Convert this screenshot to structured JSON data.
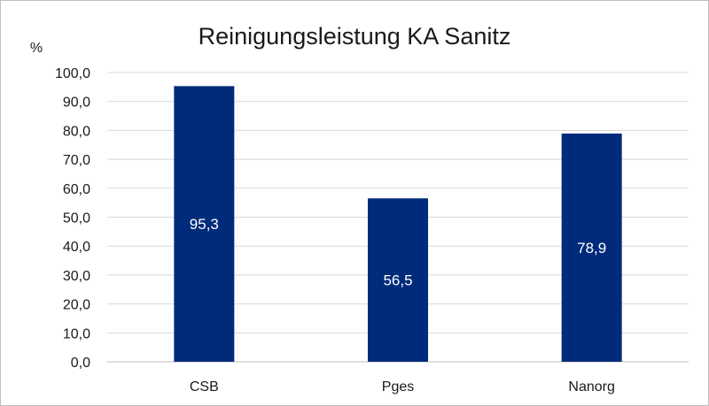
{
  "chart_data": {
    "type": "bar",
    "title": "Reinigungsleistung KA Sanitz",
    "ylabel": "%",
    "xlabel": "",
    "categories": [
      "CSB",
      "Pges",
      "Nanorg"
    ],
    "values": [
      95.3,
      56.5,
      78.9
    ],
    "data_labels": [
      "95,3",
      "56,5",
      "78,9"
    ],
    "ylim": [
      0,
      100
    ],
    "y_ticks": [
      0,
      10,
      20,
      30,
      40,
      50,
      60,
      70,
      80,
      90,
      100
    ],
    "y_tick_labels": [
      "0,0",
      "10,0",
      "20,0",
      "30,0",
      "40,0",
      "50,0",
      "60,0",
      "70,0",
      "80,0",
      "90,0",
      "100,0"
    ],
    "grid": true,
    "legend": "none",
    "bar_color": "#002b7a",
    "data_label_color": "#ffffff"
  }
}
